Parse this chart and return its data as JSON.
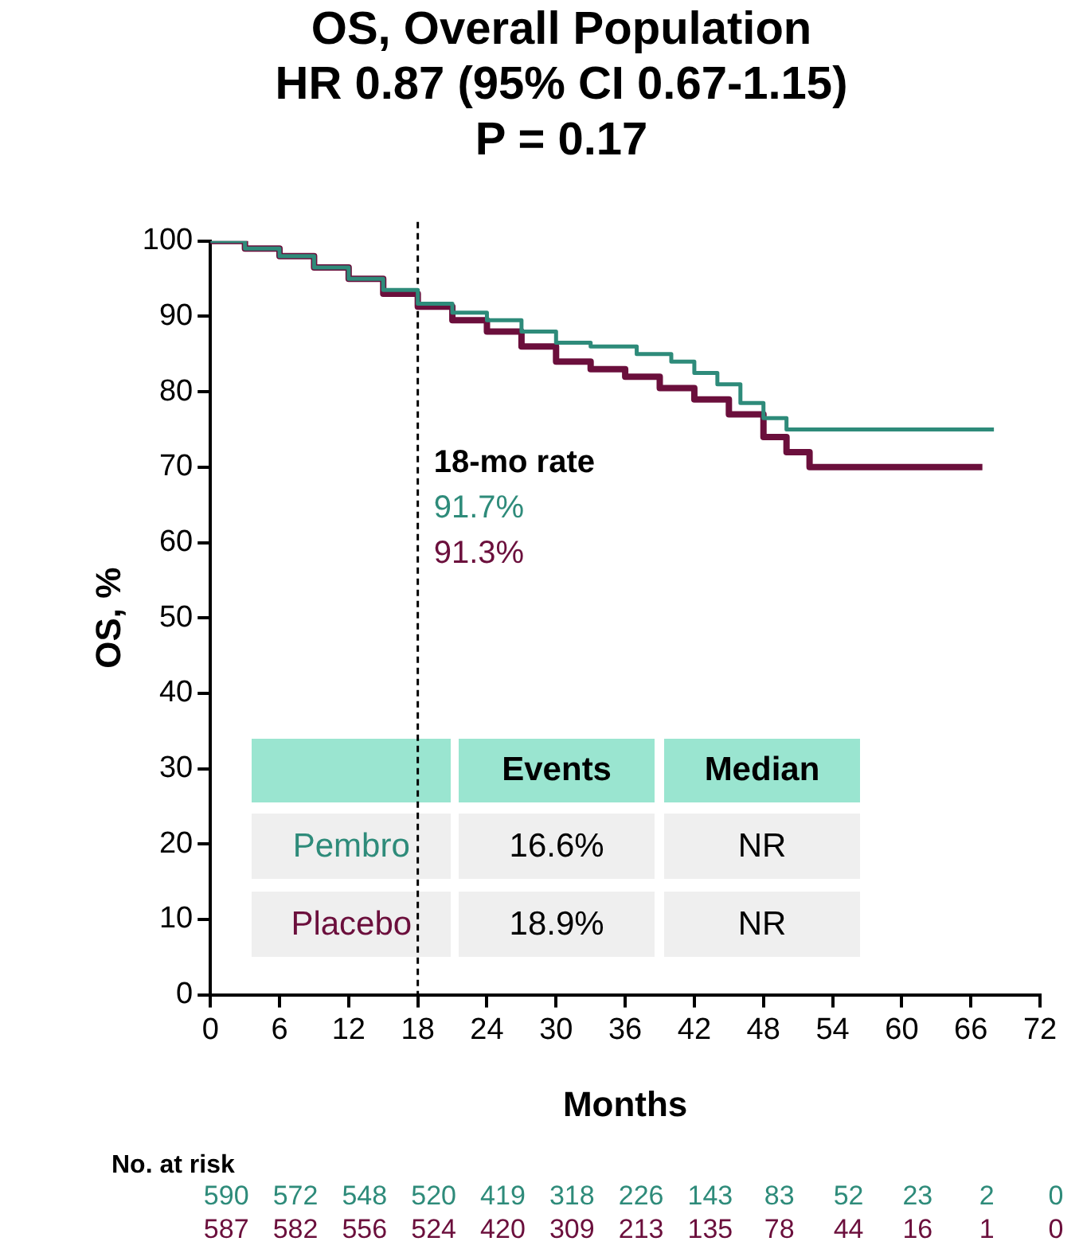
{
  "chart_data": {
    "type": "step",
    "title": "OS, Overall Population",
    "subtitle": "HR 0.87 (95% CI 0.67-1.15)\nP = 0.17",
    "xlabel": "Months",
    "ylabel": "OS, %",
    "xlim": [
      0,
      72
    ],
    "xticks": [
      0,
      6,
      12,
      18,
      24,
      30,
      36,
      42,
      48,
      54,
      60,
      66,
      72
    ],
    "ylim": [
      0,
      100
    ],
    "yticks": [
      0,
      10,
      20,
      30,
      40,
      50,
      60,
      70,
      80,
      90,
      100
    ],
    "grid": false,
    "legend": false,
    "series": [
      {
        "name": "Pembro",
        "color": "#2e8b7a",
        "x": [
          0,
          3,
          6,
          9,
          12,
          15,
          18,
          21,
          24,
          27,
          30,
          33,
          37,
          40,
          42,
          44,
          46,
          48,
          50,
          68
        ],
        "values": [
          100,
          99,
          98,
          96.5,
          95,
          93.5,
          91.7,
          90.5,
          89.5,
          88,
          86.5,
          86,
          85,
          84,
          82.5,
          81,
          78.5,
          76.5,
          75,
          75
        ]
      },
      {
        "name": "Placebo",
        "color": "#6b0f3c",
        "x": [
          0,
          3,
          6,
          9,
          12,
          15,
          18,
          21,
          24,
          27,
          30,
          33,
          36,
          39,
          42,
          45,
          48,
          50,
          52,
          67
        ],
        "values": [
          100,
          99,
          98,
          96.5,
          95,
          93,
          91.3,
          89.5,
          88,
          86,
          84,
          83,
          82,
          80.5,
          79,
          77,
          74,
          72,
          70,
          70
        ]
      }
    ],
    "ref_lines": [
      {
        "axis": "x",
        "value": 18,
        "label": "18-mo rate",
        "color": "#000000",
        "line_style": "dashed"
      }
    ],
    "annotations": [
      "91.7%",
      "91.3%",
      "Events",
      "Median",
      "16.6%",
      "NR",
      "18.9%",
      "NR",
      "No. at risk",
      "590",
      "572",
      "548",
      "520",
      "419",
      "318",
      "226",
      "143",
      "83",
      "52",
      "23",
      "2",
      "0",
      "587",
      "582",
      "556",
      "524",
      "420",
      "309",
      "213",
      "135",
      "78",
      "44",
      "16",
      "1",
      "0"
    ]
  }
}
